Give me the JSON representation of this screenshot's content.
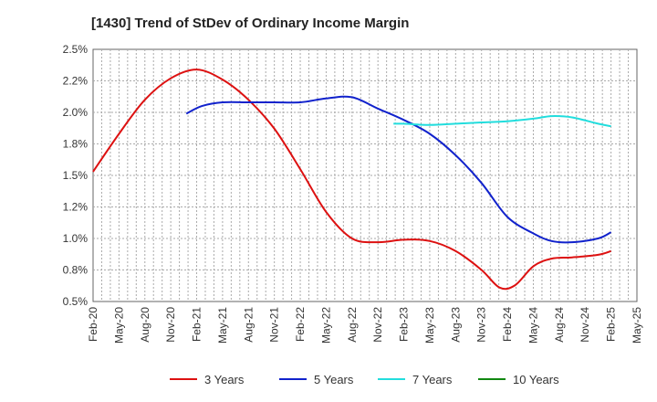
{
  "chart_data": {
    "type": "line",
    "title": "[1430]  Trend of StDev of Ordinary Income Margin",
    "xlabel": "",
    "ylabel": "",
    "ylim": [
      0.5,
      2.5
    ],
    "y_ticks": [
      "0.5%",
      "0.8%",
      "1.0%",
      "1.2%",
      "1.5%",
      "1.8%",
      "2.0%",
      "2.2%",
      "2.5%"
    ],
    "x_ticks": [
      "Feb-20",
      "May-20",
      "Aug-20",
      "Nov-20",
      "Feb-21",
      "May-21",
      "Aug-21",
      "Nov-21",
      "Feb-22",
      "May-22",
      "Aug-22",
      "Nov-22",
      "Feb-23",
      "May-23",
      "Aug-23",
      "Nov-23",
      "Feb-24",
      "May-24",
      "Aug-24",
      "Nov-24",
      "Feb-25",
      "May-25"
    ],
    "grid": true,
    "legend_position": "bottom",
    "series": [
      {
        "name": "3 Years",
        "color": "#dd1111",
        "points": [
          [
            0,
            1.53
          ],
          [
            1,
            1.83
          ],
          [
            2,
            2.1
          ],
          [
            3,
            2.27
          ],
          [
            4,
            2.34
          ],
          [
            5,
            2.26
          ],
          [
            6,
            2.1
          ],
          [
            7,
            1.87
          ],
          [
            8,
            1.55
          ],
          [
            9,
            1.21
          ],
          [
            10,
            1.0
          ],
          [
            11,
            0.97
          ],
          [
            12,
            0.99
          ],
          [
            13,
            0.98
          ],
          [
            14,
            0.9
          ],
          [
            15,
            0.75
          ],
          [
            15.7,
            0.61
          ],
          [
            16.3,
            0.63
          ],
          [
            17,
            0.78
          ],
          [
            17.7,
            0.84
          ],
          [
            18.5,
            0.85
          ],
          [
            19.5,
            0.87
          ],
          [
            20,
            0.9
          ]
        ]
      },
      {
        "name": "5 Years",
        "color": "#1122cc",
        "points": [
          [
            3.6,
            1.99
          ],
          [
            4.2,
            2.05
          ],
          [
            5,
            2.08
          ],
          [
            6,
            2.08
          ],
          [
            7,
            2.08
          ],
          [
            8,
            2.08
          ],
          [
            9,
            2.11
          ],
          [
            10,
            2.12
          ],
          [
            11,
            2.03
          ],
          [
            12,
            1.94
          ],
          [
            13,
            1.83
          ],
          [
            14,
            1.66
          ],
          [
            15,
            1.44
          ],
          [
            16,
            1.17
          ],
          [
            17,
            1.04
          ],
          [
            17.7,
            0.98
          ],
          [
            18.5,
            0.97
          ],
          [
            19.5,
            1.0
          ],
          [
            20,
            1.05
          ]
        ]
      },
      {
        "name": "7 Years",
        "color": "#22dddd",
        "points": [
          [
            11.6,
            1.91
          ],
          [
            12,
            1.91
          ],
          [
            13,
            1.9
          ],
          [
            14,
            1.91
          ],
          [
            15,
            1.92
          ],
          [
            16,
            1.93
          ],
          [
            17,
            1.95
          ],
          [
            17.7,
            1.97
          ],
          [
            18.5,
            1.96
          ],
          [
            19.5,
            1.91
          ],
          [
            20,
            1.89
          ]
        ]
      },
      {
        "name": "10 Years",
        "color": "#118811",
        "points": []
      }
    ]
  }
}
